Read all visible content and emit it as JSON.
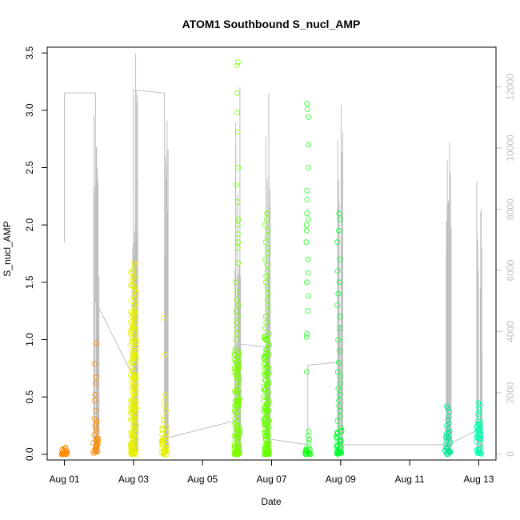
{
  "chart_data": {
    "type": "scatter",
    "title": "ATOM1 Southbound S_nucl_AMP",
    "xlabel": "Date",
    "ylabel": "S_nucl_AMP",
    "x_ticks": [
      "Aug 01",
      "Aug 03",
      "Aug 05",
      "Aug 07",
      "Aug 09",
      "Aug 11",
      "Aug 13"
    ],
    "x_tick_days": [
      1,
      3,
      5,
      7,
      9,
      11,
      13
    ],
    "xlim_days": [
      0.5,
      13.5
    ],
    "ylim": [
      -0.05,
      3.55
    ],
    "y_ticks": [
      0.0,
      0.5,
      1.0,
      1.5,
      2.0,
      2.5,
      3.0,
      3.5
    ],
    "y_right_lim": [
      -200,
      13300
    ],
    "y_right_ticks": [
      0,
      2000,
      4000,
      6000,
      8000,
      10000,
      12000
    ],
    "grid": false,
    "colors": {
      "right_axis": "#bebebe",
      "line": "#bebebe",
      "frame": "#000000"
    },
    "series": [
      {
        "day": 1.0,
        "color": "#FF8C00",
        "max": 0.06,
        "dense_max": 0.04,
        "outliers": [
          0.06,
          0.05,
          0.03,
          0.02
        ]
      },
      {
        "day": 1.9,
        "color": "#FF8C00",
        "max": 0.97,
        "dense_max": 0.15,
        "outliers": [
          0.97,
          0.79,
          0.67,
          0.62,
          0.52,
          0.47,
          0.38,
          0.31,
          0.29,
          0.27,
          0.25,
          0.22,
          0.2,
          0.17
        ]
      },
      {
        "day": 3.0,
        "color": "#E6F000",
        "max": 1.67,
        "dense_max": 1.6,
        "outliers": [
          1.67,
          1.65,
          1.62,
          0.55,
          0.5,
          0.45,
          0.4,
          0.35,
          0.3
        ]
      },
      {
        "day": 3.9,
        "color": "#E6F000",
        "max": 1.19,
        "dense_max": 0.25,
        "outliers": [
          1.19,
          0.87,
          0.52,
          0.47,
          0.42,
          0.38,
          0.33,
          0.3,
          0.27
        ]
      },
      {
        "day": 6.0,
        "color": "#7CFC00",
        "max": 3.42,
        "dense_max": 0.95,
        "outliers": [
          3.42,
          3.39,
          3.15,
          2.98,
          2.81,
          2.5,
          2.35,
          2.2,
          2.05,
          2.0,
          1.92,
          1.85,
          1.8,
          1.67,
          1.5,
          1.42,
          1.35,
          1.3,
          1.25,
          1.2,
          1.15,
          1.1,
          1.05,
          1.0
        ]
      },
      {
        "day": 6.85,
        "color": "#66FF00",
        "max": 2.1,
        "dense_max": 1.05,
        "outliers": [
          2.1,
          2.05,
          2.0,
          1.95,
          1.9,
          1.85,
          1.8,
          1.75,
          1.7,
          1.65,
          1.6,
          1.55,
          1.5,
          1.45,
          1.4,
          1.35,
          1.3,
          1.25,
          1.2,
          1.15,
          1.1
        ]
      },
      {
        "day": 8.05,
        "color": "#1AFF1A",
        "max": 3.06,
        "dense_max": 0.05,
        "outliers": [
          3.06,
          3.01,
          2.94,
          2.7,
          2.5,
          2.3,
          2.22,
          2.1,
          2.05,
          2.0,
          1.95,
          1.85,
          1.7,
          1.58,
          1.5,
          1.38,
          1.25,
          1.05,
          1.02,
          0.72,
          0.2,
          0.16,
          0.13,
          0.1
        ]
      },
      {
        "day": 8.95,
        "color": "#00FF33",
        "max": 2.1,
        "dense_max": 0.25,
        "outliers": [
          2.1,
          2.05,
          1.95,
          1.85,
          1.7,
          1.6,
          1.5,
          1.4,
          1.3,
          1.2,
          1.1,
          1.0,
          0.9,
          0.8,
          0.72,
          0.68,
          0.62,
          0.57,
          0.52,
          0.47,
          0.42,
          0.38,
          0.33,
          0.29
        ]
      },
      {
        "day": 12.1,
        "color": "#00E896",
        "max": 0.42,
        "dense_max": 0.2,
        "outliers": [
          0.42,
          0.4,
          0.37,
          0.33,
          0.3,
          0.27,
          0.25,
          0.22
        ]
      },
      {
        "day": 13.0,
        "color": "#00FFB0",
        "max": 0.45,
        "dense_max": 0.3,
        "outliers": [
          0.45,
          0.43,
          0.41,
          0.39,
          0.37,
          0.35,
          0.33
        ]
      }
    ],
    "secondary_line": {
      "axis": "right",
      "points": [
        {
          "day": 1.0,
          "value": 6900
        },
        {
          "day": 1.0,
          "value": 11800
        },
        {
          "day": 1.9,
          "value": 11800
        },
        {
          "day": 1.9,
          "value": 5000
        },
        {
          "day": 3.0,
          "value": 2500
        },
        {
          "day": 3.0,
          "value": 11900
        },
        {
          "day": 3.9,
          "value": 11800
        },
        {
          "day": 3.9,
          "value": 500
        },
        {
          "day": 6.0,
          "value": 1100
        },
        {
          "day": 6.0,
          "value": 3600
        },
        {
          "day": 6.85,
          "value": 3500
        },
        {
          "day": 6.85,
          "value": 500
        },
        {
          "day": 8.05,
          "value": 300
        },
        {
          "day": 8.05,
          "value": 2900
        },
        {
          "day": 8.95,
          "value": 3000
        },
        {
          "day": 8.95,
          "value": 300
        },
        {
          "day": 12.1,
          "value": 300
        },
        {
          "day": 13.0,
          "value": 800
        }
      ],
      "spikes": [
        {
          "day": 1.93,
          "max": 11100
        },
        {
          "day": 3.05,
          "max": 13100
        },
        {
          "day": 3.97,
          "max": 10900
        },
        {
          "day": 6.02,
          "max": 12000
        },
        {
          "day": 6.88,
          "max": 11800
        },
        {
          "day": 8.98,
          "max": 11400
        },
        {
          "day": 12.12,
          "max": 10200
        },
        {
          "day": 13.02,
          "max": 8900
        }
      ]
    }
  }
}
